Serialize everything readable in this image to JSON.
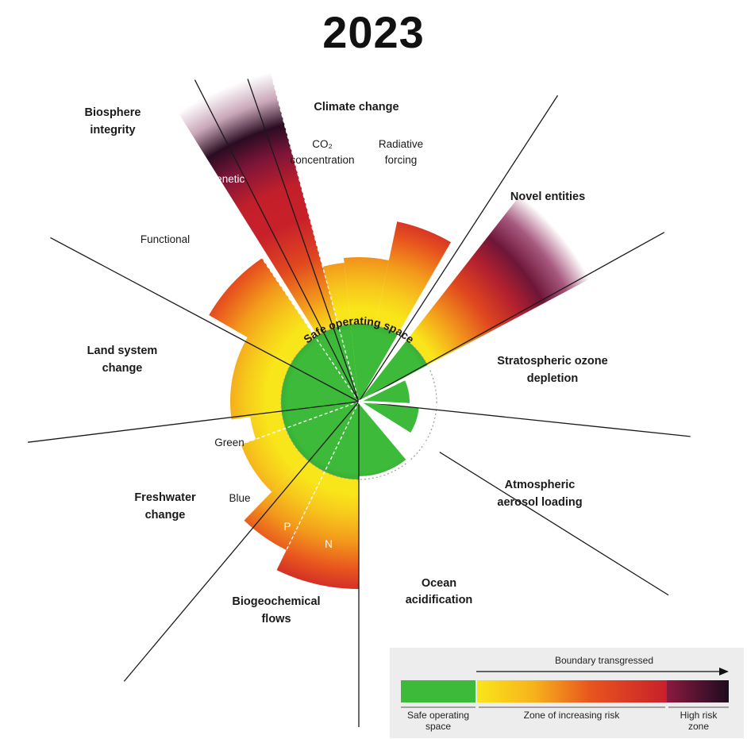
{
  "title": "2023",
  "colors": {
    "safe": "#3dba3a",
    "safe_dark": "#2fa42d",
    "risk_start": "#f9e61a",
    "risk_mid": "#f39a1c",
    "risk_end": "#c8202a",
    "high_risk_start": "#8b1a3f",
    "high_risk_end": "#1e0b1f"
  },
  "boundaries": {
    "climate": "Climate change",
    "co2": [
      "CO₂",
      "concentration"
    ],
    "radiative": [
      "Radiative",
      "forcing"
    ],
    "novel": "Novel entities",
    "ozone": [
      "Stratospheric ozone",
      "depletion"
    ],
    "aerosol": [
      "Atmospheric",
      "aerosol loading"
    ],
    "ocean": [
      "Ocean",
      "acidification"
    ],
    "biogeo": [
      "Biogeochemical",
      "flows"
    ],
    "p": "P",
    "n": "N",
    "freshwater": [
      "Freshwater",
      "change"
    ],
    "green": "Green",
    "blue": "Blue",
    "land": [
      "Land system",
      "change"
    ],
    "biosphere": [
      "Biosphere",
      "integrity"
    ],
    "functional": "Functional",
    "genetic": "Genetic"
  },
  "center_label": "Safe operating space",
  "legend": {
    "arrow_label": "Boundary transgressed",
    "safe": [
      "Safe operating",
      "space"
    ],
    "risk": "Zone of increasing risk",
    "high": [
      "High risk",
      "zone"
    ]
  }
}
